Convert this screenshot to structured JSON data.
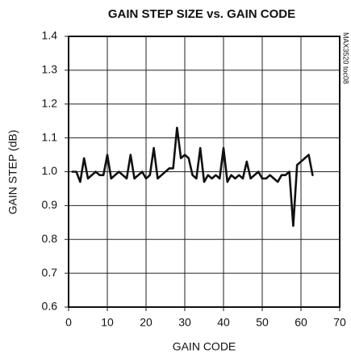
{
  "chart_data": {
    "type": "line",
    "title": "GAIN STEP SIZE vs. GAIN CODE",
    "side_note": "MAX3520 toc08",
    "x_label": "GAIN CODE",
    "y_label": "GAIN STEP (dB)",
    "x": [
      1,
      2,
      3,
      4,
      5,
      6,
      7,
      8,
      9,
      10,
      11,
      12,
      13,
      14,
      15,
      16,
      17,
      18,
      19,
      20,
      21,
      22,
      23,
      24,
      25,
      26,
      27,
      28,
      29,
      30,
      31,
      32,
      33,
      34,
      35,
      36,
      37,
      38,
      39,
      40,
      41,
      42,
      43,
      44,
      45,
      46,
      47,
      48,
      49,
      50,
      51,
      52,
      53,
      54,
      55,
      56,
      57,
      58,
      59,
      60,
      61,
      62,
      63
    ],
    "series": [
      {
        "name": "Gain step",
        "color": "#111111",
        "values": [
          1.0,
          1.0,
          0.97,
          1.04,
          0.98,
          0.99,
          1.0,
          0.99,
          0.99,
          1.05,
          0.98,
          0.99,
          1.0,
          0.99,
          0.98,
          1.05,
          0.98,
          0.99,
          1.0,
          0.98,
          0.99,
          1.07,
          0.98,
          0.99,
          1.0,
          1.01,
          1.01,
          1.13,
          1.04,
          1.05,
          1.04,
          0.99,
          0.98,
          1.07,
          0.97,
          0.99,
          0.98,
          0.99,
          0.98,
          1.07,
          0.97,
          0.99,
          0.98,
          0.99,
          0.98,
          1.03,
          0.98,
          0.99,
          1.0,
          0.98,
          0.98,
          0.99,
          0.98,
          0.97,
          0.99,
          0.99,
          1.0,
          0.84,
          1.02,
          1.03,
          1.04,
          1.05,
          0.99
        ]
      }
    ],
    "xlim": [
      0,
      70
    ],
    "xticks": [
      0,
      10,
      20,
      30,
      40,
      50,
      60,
      70
    ],
    "ylim": [
      0.6,
      1.4
    ],
    "yticks": [
      0.6,
      0.7,
      0.8,
      0.9,
      {
        "value": 1,
        "label": "1.0"
      },
      1.1,
      1.2,
      1.3,
      1.4
    ],
    "grid": true
  }
}
